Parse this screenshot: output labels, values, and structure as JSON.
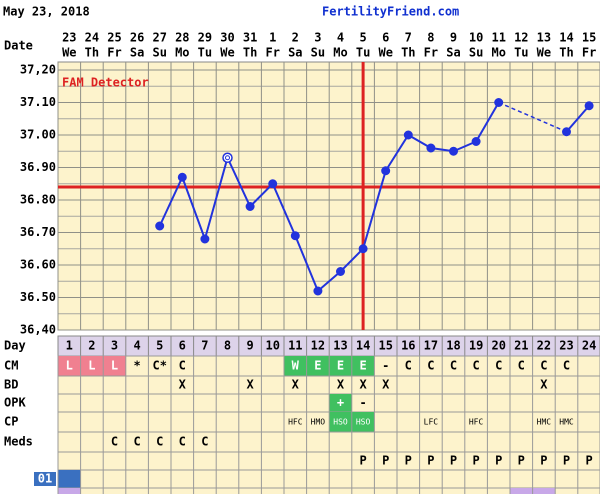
{
  "header": {
    "date": "May 23, 2018",
    "site": "FertilityFriend.com"
  },
  "chart_data": {
    "type": "line",
    "x_label": "Date",
    "annotation": "FAM Detector",
    "categories": [
      "23",
      "24",
      "25",
      "26",
      "27",
      "28",
      "29",
      "30",
      "31",
      "1",
      "2",
      "3",
      "4",
      "5",
      "6",
      "7",
      "8",
      "9",
      "10",
      "11",
      "12",
      "13",
      "14",
      "15"
    ],
    "weekdays": [
      "We",
      "Th",
      "Fr",
      "Sa",
      "Su",
      "Mo",
      "Tu",
      "We",
      "Th",
      "Fr",
      "Sa",
      "Su",
      "Mo",
      "Tu",
      "We",
      "Th",
      "Fr",
      "Sa",
      "Su",
      "Mo",
      "Tu",
      "We",
      "Th",
      "Fr"
    ],
    "series": [
      {
        "color": "#2233dd",
        "values": [
          null,
          null,
          null,
          null,
          36.72,
          36.87,
          36.68,
          36.93,
          36.78,
          36.85,
          36.69,
          36.52,
          36.58,
          36.65,
          36.89,
          37.0,
          36.96,
          36.95,
          36.98,
          37.1,
          null,
          null,
          37.01,
          37.09
        ]
      }
    ],
    "open_circle_days": [
      8
    ],
    "ylim": [
      36.4,
      37.2
    ],
    "yticks": [
      {
        "value": 36.4,
        "label": "36,40"
      },
      {
        "value": 36.5,
        "label": "36.50"
      },
      {
        "value": 36.6,
        "label": "36.60"
      },
      {
        "value": 36.7,
        "label": "36.70"
      },
      {
        "value": 36.8,
        "label": "36.80"
      },
      {
        "value": 36.9,
        "label": "36.90"
      },
      {
        "value": 37.0,
        "label": "37.00"
      },
      {
        "value": 37.1,
        "label": "37.10"
      },
      {
        "value": 37.2,
        "label": "37,20"
      }
    ],
    "grid": true,
    "coverline": 36.84,
    "ovulation_day": 14,
    "marker_color": "#dd2222"
  },
  "table": {
    "day_label": "Day",
    "days": [
      1,
      2,
      3,
      4,
      5,
      6,
      7,
      8,
      9,
      10,
      11,
      12,
      13,
      14,
      15,
      16,
      17,
      18,
      19,
      20,
      21,
      22,
      23,
      24
    ],
    "rows": [
      {
        "label": "CM",
        "cells": [
          "L",
          "L",
          "L",
          "*",
          "C*",
          "C",
          null,
          null,
          null,
          null,
          "W",
          "E",
          "E",
          "E",
          "-",
          "C",
          "C",
          "C",
          "C",
          "C",
          "C",
          "C",
          "C",
          null
        ],
        "colors": [
          "#f08090",
          "#f08090",
          "#f08090",
          null,
          null,
          null,
          null,
          null,
          null,
          null,
          "#40c060",
          "#40c060",
          "#40c060",
          "#40c060",
          null,
          null,
          null,
          null,
          null,
          null,
          null,
          null,
          null,
          null
        ]
      },
      {
        "label": "BD",
        "cells": [
          null,
          null,
          null,
          null,
          null,
          "X",
          null,
          null,
          "X",
          null,
          "X",
          null,
          "X",
          "X",
          "X",
          null,
          null,
          null,
          null,
          null,
          null,
          "X",
          null,
          null
        ]
      },
      {
        "label": "OPK",
        "cells": [
          null,
          null,
          null,
          null,
          null,
          null,
          null,
          null,
          null,
          null,
          null,
          null,
          "+",
          "-",
          null,
          null,
          null,
          null,
          null,
          null,
          null,
          null,
          null,
          null
        ],
        "colors": [
          null,
          null,
          null,
          null,
          null,
          null,
          null,
          null,
          null,
          null,
          null,
          null,
          "#40c060",
          null,
          null,
          null,
          null,
          null,
          null,
          null,
          null,
          null,
          null,
          null
        ]
      },
      {
        "label": "CP",
        "small": true,
        "cells": [
          null,
          null,
          null,
          null,
          null,
          null,
          null,
          null,
          null,
          null,
          "HFC",
          "HMO",
          "HSO",
          "HSO",
          null,
          null,
          "LFC",
          null,
          "HFC",
          null,
          null,
          "HMC",
          "HMC",
          null
        ],
        "colors": [
          null,
          null,
          null,
          null,
          null,
          null,
          null,
          null,
          null,
          null,
          null,
          null,
          "#40c060",
          "#40c060",
          null,
          null,
          null,
          null,
          null,
          null,
          null,
          null,
          null,
          null
        ]
      },
      {
        "label": "Meds",
        "cells": [
          null,
          null,
          "C",
          "C",
          "C",
          "C",
          "C",
          null,
          null,
          null,
          null,
          null,
          null,
          null,
          null,
          null,
          null,
          null,
          null,
          null,
          null,
          null,
          null,
          null
        ]
      },
      {
        "cells": [
          null,
          null,
          null,
          null,
          null,
          null,
          null,
          null,
          null,
          null,
          null,
          null,
          null,
          "P",
          "P",
          "P",
          "P",
          "P",
          "P",
          "P",
          "P",
          "P",
          "P",
          "P"
        ]
      },
      {
        "label": "01",
        "label_color": "#3a70c0",
        "cells": [
          null,
          null,
          null,
          null,
          null,
          null,
          null,
          null,
          null,
          null,
          null,
          null,
          null,
          null,
          null,
          null,
          null,
          null,
          null,
          null,
          null,
          null,
          null,
          null
        ],
        "colors": [
          "#3a70c0",
          null,
          null,
          null,
          null,
          null,
          null,
          null,
          null,
          null,
          null,
          null,
          null,
          null,
          null,
          null,
          null,
          null,
          null,
          null,
          null,
          null,
          null,
          null
        ]
      },
      {
        "cells": [
          null,
          null,
          null,
          null,
          null,
          null,
          null,
          null,
          null,
          null,
          null,
          null,
          null,
          null,
          null,
          null,
          null,
          null,
          null,
          null,
          null,
          null,
          null,
          null
        ],
        "colors": [
          "#c8a8e8",
          null,
          null,
          null,
          null,
          null,
          null,
          null,
          null,
          null,
          null,
          null,
          null,
          null,
          null,
          null,
          null,
          null,
          null,
          null,
          "#c8a8e8",
          "#c8a8e8",
          null,
          null
        ]
      }
    ]
  }
}
